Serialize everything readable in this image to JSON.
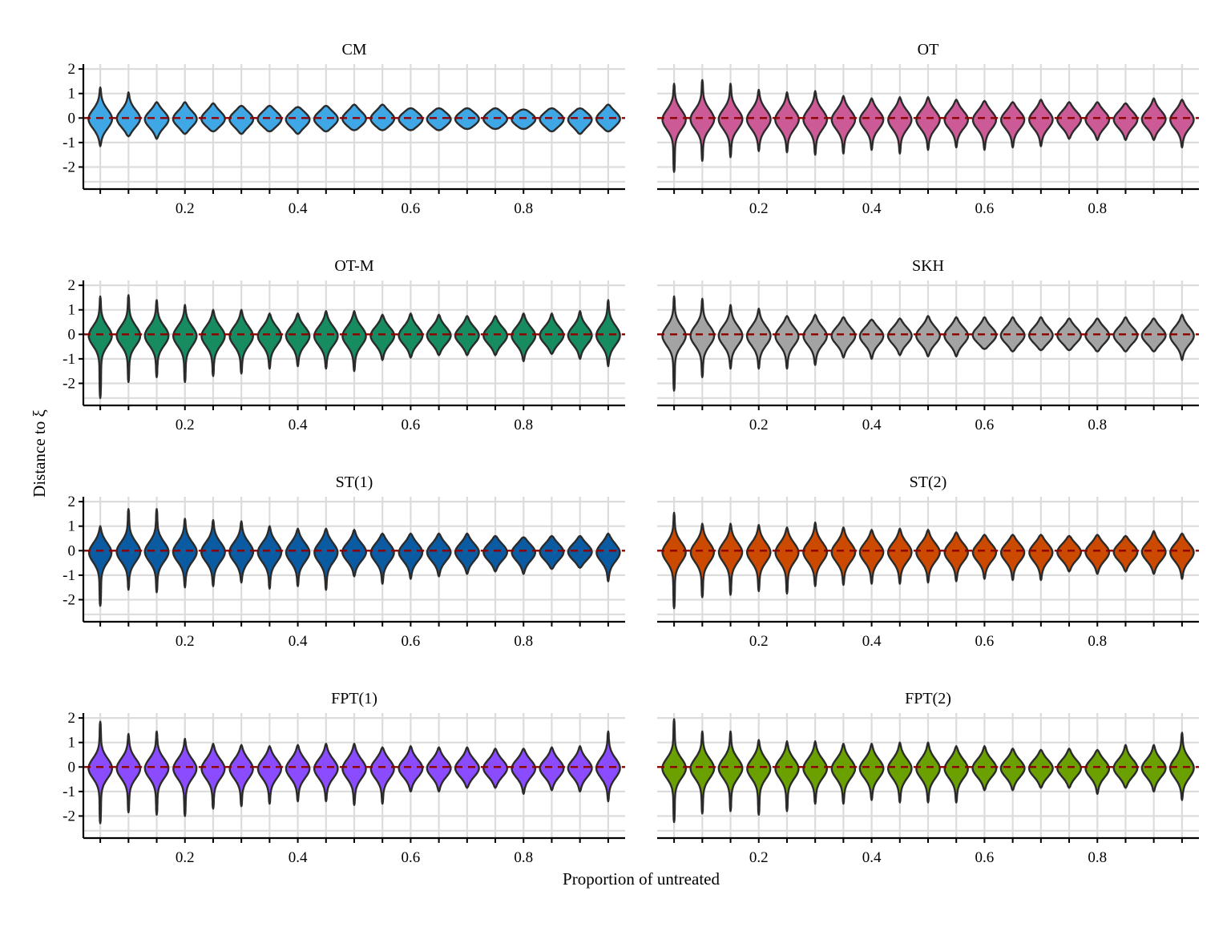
{
  "chart_data": {
    "type": "violin",
    "xlabel": "Proportion of untreated",
    "ylabel": "Distance to ξ",
    "x": [
      0.05,
      0.1,
      0.15,
      0.2,
      0.25,
      0.3,
      0.35,
      0.4,
      0.45,
      0.5,
      0.55,
      0.6,
      0.65,
      0.7,
      0.75,
      0.8,
      0.85,
      0.9,
      0.95
    ],
    "x_ticks": [
      0.2,
      0.4,
      0.6,
      0.8
    ],
    "x_tick_labels": [
      "0.2",
      "0.4",
      "0.6",
      "0.8"
    ],
    "xlim": [
      0.02,
      0.98
    ],
    "y_ticks": [
      -2,
      -1,
      0,
      1,
      2
    ],
    "y_tick_labels": [
      "-2",
      "-1",
      "0",
      "1",
      "2"
    ],
    "ylim": [
      -2.9,
      2.2
    ],
    "reference_line": {
      "y": 0,
      "style": "dashed",
      "color": "#8B0000"
    },
    "grid": true,
    "colors": {
      "outline": "#2b2b2b",
      "grid": "#dcdcdc",
      "axis": "#000000"
    },
    "panels": [
      {
        "title": "CM",
        "color": "#3FA7E6",
        "min": [
          -1.15,
          -0.75,
          -0.85,
          -0.65,
          -0.55,
          -0.65,
          -0.55,
          -0.65,
          -0.55,
          -0.5,
          -0.5,
          -0.5,
          -0.5,
          -0.45,
          -0.45,
          -0.45,
          -0.55,
          -0.65,
          -0.55
        ],
        "max": [
          1.25,
          1.05,
          0.65,
          0.65,
          0.6,
          0.5,
          0.5,
          0.45,
          0.5,
          0.55,
          0.55,
          0.4,
          0.4,
          0.4,
          0.4,
          0.35,
          0.4,
          0.4,
          0.55
        ]
      },
      {
        "title": "OT",
        "color": "#CC5A96",
        "min": [
          -2.2,
          -1.75,
          -1.6,
          -1.35,
          -1.4,
          -1.5,
          -1.45,
          -1.3,
          -1.45,
          -1.3,
          -1.2,
          -1.3,
          -1.2,
          -1.15,
          -0.85,
          -0.9,
          -0.9,
          -0.9,
          -1.2
        ],
        "max": [
          1.4,
          1.55,
          1.4,
          1.15,
          1.05,
          1.1,
          0.9,
          0.8,
          0.85,
          0.85,
          0.75,
          0.7,
          0.65,
          0.75,
          0.65,
          0.65,
          0.6,
          0.8,
          0.75
        ]
      },
      {
        "title": "OT-M",
        "color": "#168C60",
        "min": [
          -2.6,
          -1.95,
          -1.75,
          -1.95,
          -1.7,
          -1.6,
          -1.4,
          -1.3,
          -1.4,
          -1.5,
          -1.05,
          -0.95,
          -0.85,
          -0.85,
          -0.85,
          -1.1,
          -0.8,
          -1.0,
          -1.3
        ],
        "max": [
          1.55,
          1.6,
          1.4,
          1.2,
          1.0,
          1.0,
          0.85,
          0.85,
          0.95,
          0.95,
          0.8,
          0.85,
          0.8,
          0.75,
          0.75,
          0.85,
          0.85,
          0.95,
          1.4
        ]
      },
      {
        "title": "SKH",
        "color": "#A3A3A3",
        "min": [
          -2.3,
          -1.75,
          -1.4,
          -1.4,
          -1.4,
          -1.25,
          -0.95,
          -1.0,
          -0.85,
          -0.9,
          -0.9,
          -0.6,
          -0.7,
          -0.65,
          -0.65,
          -0.7,
          -0.7,
          -0.7,
          -1.05
        ],
        "max": [
          1.55,
          1.45,
          1.2,
          1.05,
          0.75,
          0.8,
          0.7,
          0.6,
          0.65,
          0.75,
          0.7,
          0.7,
          0.7,
          0.7,
          0.65,
          0.65,
          0.7,
          0.65,
          0.8
        ]
      },
      {
        "title": "ST(1)",
        "color": "#0B5BA3",
        "min": [
          -2.25,
          -1.6,
          -1.7,
          -1.5,
          -1.45,
          -1.3,
          -1.55,
          -1.45,
          -1.6,
          -1.05,
          -1.35,
          -1.15,
          -1.05,
          -0.95,
          -0.85,
          -0.95,
          -0.75,
          -0.7,
          -1.25
        ],
        "max": [
          1.0,
          1.7,
          1.7,
          1.3,
          1.25,
          1.2,
          1.0,
          0.9,
          0.9,
          0.85,
          0.7,
          0.7,
          0.7,
          0.7,
          0.6,
          0.55,
          0.6,
          0.6,
          0.7
        ]
      },
      {
        "title": "ST(2)",
        "color": "#CC4A00",
        "min": [
          -2.35,
          -1.9,
          -1.8,
          -1.65,
          -1.75,
          -1.45,
          -1.4,
          -1.35,
          -1.35,
          -1.3,
          -1.25,
          -1.15,
          -1.2,
          -1.2,
          -0.85,
          -0.95,
          -0.85,
          -0.95,
          -1.15
        ],
        "max": [
          1.55,
          1.1,
          1.1,
          1.05,
          0.95,
          1.15,
          0.95,
          0.85,
          0.9,
          0.85,
          0.75,
          0.65,
          0.65,
          0.65,
          0.6,
          0.65,
          0.6,
          0.8,
          0.7
        ]
      },
      {
        "title": "FPT(1)",
        "color": "#8B4BFF",
        "min": [
          -2.3,
          -1.85,
          -1.95,
          -2.0,
          -1.7,
          -1.6,
          -1.5,
          -1.4,
          -1.4,
          -1.55,
          -1.5,
          -1.0,
          -1.0,
          -0.85,
          -0.85,
          -1.1,
          -0.95,
          -1.0,
          -1.4
        ],
        "max": [
          1.85,
          1.35,
          1.45,
          1.15,
          0.95,
          0.9,
          0.85,
          0.9,
          0.95,
          0.95,
          0.8,
          0.85,
          0.8,
          0.8,
          0.75,
          0.75,
          0.8,
          0.85,
          1.45
        ]
      },
      {
        "title": "FPT(2)",
        "color": "#6AA000",
        "min": [
          -2.25,
          -1.9,
          -1.8,
          -1.95,
          -1.8,
          -1.5,
          -1.5,
          -1.35,
          -1.45,
          -1.45,
          -1.45,
          -0.95,
          -0.95,
          -0.85,
          -0.85,
          -1.1,
          -0.85,
          -1.0,
          -1.35
        ],
        "max": [
          1.95,
          1.45,
          1.45,
          1.1,
          1.05,
          1.05,
          0.95,
          0.95,
          1.0,
          1.0,
          0.85,
          0.85,
          0.75,
          0.7,
          0.75,
          0.7,
          0.9,
          0.9,
          1.4
        ]
      }
    ]
  }
}
